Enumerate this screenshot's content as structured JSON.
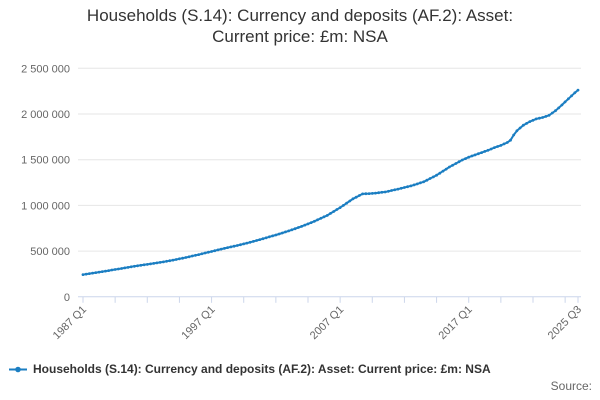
{
  "title": {
    "line1": "Households (S.14): Currency and deposits (AF.2): Asset:",
    "line2": "Current price: £m: NSA"
  },
  "legend": {
    "label": "Households (S.14): Currency and deposits (AF.2): Asset: Current price: £m: NSA"
  },
  "source_label": "Source:",
  "colors": {
    "series": "#1b7ec2",
    "grid": "#e6e6e6",
    "axis": "#ccd6eb",
    "tick_label": "#666666",
    "title_text": "#333333",
    "legend_text": "#333333",
    "source_text": "#666666"
  },
  "chart_data": {
    "type": "line",
    "title": "Households (S.14): Currency and deposits (AF.2): Asset: Current price: £m: NSA",
    "xlabel": "",
    "ylabel": "",
    "unit": "£m",
    "frequency": "quarterly",
    "x_range": [
      "1987 Q1",
      "2025 Q3"
    ],
    "ylim": [
      0,
      2500000
    ],
    "grid": "horizontal-only",
    "legend_position": "bottom-left",
    "y_ticks": [
      {
        "value": 0,
        "label": "0"
      },
      {
        "value": 500000,
        "label": "500 000"
      },
      {
        "value": 1000000,
        "label": "1 000 000"
      },
      {
        "value": 1500000,
        "label": "1 500 000"
      },
      {
        "value": 2000000,
        "label": "2 000 000"
      },
      {
        "value": 2500000,
        "label": "2 500 000"
      }
    ],
    "x_axis": {
      "start_year": 1987.0,
      "end_year": 2025.5,
      "minor_tick_every_years": 2.5,
      "labels": [
        {
          "text": "1987 Q1",
          "t": 1987.0
        },
        {
          "text": "1997 Q1",
          "t": 1997.0
        },
        {
          "text": "2007 Q1",
          "t": 2007.0
        },
        {
          "text": "2017 Q1",
          "t": 2017.0
        },
        {
          "text": "2025 Q3",
          "t": 2025.5
        }
      ]
    },
    "series": [
      {
        "name": "Households (S.14): Currency and deposits (AF.2): Asset: Current price: £m: NSA",
        "marker": "dot",
        "anchor_points_year_value": [
          [
            1987.0,
            243000
          ],
          [
            1988.0,
            265000
          ],
          [
            1989.0,
            287000
          ],
          [
            1990.0,
            310000
          ],
          [
            1991.0,
            334000
          ],
          [
            1992.0,
            355000
          ],
          [
            1993.0,
            376000
          ],
          [
            1994.0,
            401000
          ],
          [
            1995.0,
            430000
          ],
          [
            1996.0,
            462000
          ],
          [
            1997.0,
            496000
          ],
          [
            1998.0,
            530000
          ],
          [
            1999.0,
            561000
          ],
          [
            2000.0,
            596000
          ],
          [
            2001.0,
            636000
          ],
          [
            2002.0,
            676000
          ],
          [
            2003.0,
            721000
          ],
          [
            2004.0,
            770000
          ],
          [
            2005.0,
            826000
          ],
          [
            2006.0,
            891000
          ],
          [
            2007.0,
            976000
          ],
          [
            2008.0,
            1072000
          ],
          [
            2008.75,
            1126000
          ],
          [
            2009.5,
            1131000
          ],
          [
            2010.5,
            1147000
          ],
          [
            2011.5,
            1178000
          ],
          [
            2012.5,
            1213000
          ],
          [
            2013.5,
            1258000
          ],
          [
            2014.5,
            1330000
          ],
          [
            2015.5,
            1420000
          ],
          [
            2016.5,
            1497000
          ],
          [
            2017.0,
            1527000
          ],
          [
            2017.5,
            1553000
          ],
          [
            2018.0,
            1578000
          ],
          [
            2018.5,
            1603000
          ],
          [
            2019.0,
            1632000
          ],
          [
            2019.5,
            1657000
          ],
          [
            2020.0,
            1688000
          ],
          [
            2020.25,
            1713000
          ],
          [
            2020.5,
            1770000
          ],
          [
            2020.75,
            1816000
          ],
          [
            2021.25,
            1878000
          ],
          [
            2021.75,
            1917000
          ],
          [
            2022.25,
            1946000
          ],
          [
            2022.75,
            1962000
          ],
          [
            2023.25,
            1986000
          ],
          [
            2023.75,
            2036000
          ],
          [
            2024.25,
            2098000
          ],
          [
            2024.75,
            2166000
          ],
          [
            2025.25,
            2232000
          ],
          [
            2025.5,
            2262000
          ]
        ]
      }
    ]
  }
}
